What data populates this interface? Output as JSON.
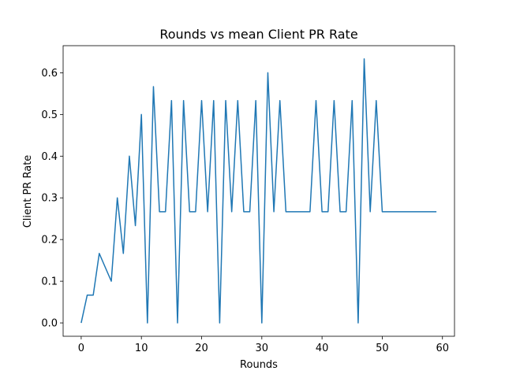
{
  "chart_data": {
    "type": "line",
    "title": "Rounds vs mean Client PR Rate",
    "xlabel": "Rounds",
    "ylabel": "Client PR Rate",
    "xlim": [
      -3,
      62
    ],
    "ylim": [
      -0.032,
      0.665
    ],
    "xticks": [
      0,
      10,
      20,
      30,
      40,
      50,
      60
    ],
    "yticks": [
      0.0,
      0.1,
      0.2,
      0.3,
      0.4,
      0.5,
      0.6
    ],
    "ytick_labels": [
      "0.0",
      "0.1",
      "0.2",
      "0.3",
      "0.4",
      "0.5",
      "0.6"
    ],
    "grid": false,
    "series_color": "#1f77b4",
    "series": [
      {
        "x": [
          0,
          1,
          2,
          3,
          4,
          5,
          6,
          7,
          8,
          9,
          10,
          11,
          12,
          13,
          14,
          15,
          16,
          17,
          18,
          19,
          20,
          21,
          22,
          23,
          24,
          25,
          26,
          27,
          28,
          29,
          30,
          31,
          32,
          33,
          34,
          35,
          36,
          37,
          38,
          39,
          40,
          41,
          42,
          43,
          44,
          45,
          46,
          47,
          48,
          49,
          50,
          51,
          52,
          53,
          54,
          55,
          56,
          57,
          58,
          59
        ],
        "values": [
          0.0,
          0.0667,
          0.0667,
          0.1667,
          0.1333,
          0.1,
          0.3,
          0.1667,
          0.4,
          0.2333,
          0.5,
          0.0,
          0.5667,
          0.2667,
          0.2667,
          0.5333,
          0.0,
          0.5333,
          0.2667,
          0.2667,
          0.5333,
          0.2667,
          0.5333,
          0.0,
          0.5333,
          0.2667,
          0.5333,
          0.2667,
          0.2667,
          0.5333,
          0.0,
          0.6,
          0.2667,
          0.5333,
          0.2667,
          0.2667,
          0.2667,
          0.2667,
          0.2667,
          0.5333,
          0.2667,
          0.2667,
          0.5333,
          0.2667,
          0.2667,
          0.5333,
          0.0,
          0.6333,
          0.2667,
          0.5333,
          0.2667,
          0.2667,
          0.2667,
          0.2667,
          0.2667,
          0.2667,
          0.2667,
          0.2667,
          0.2667,
          0.2667
        ]
      }
    ]
  }
}
